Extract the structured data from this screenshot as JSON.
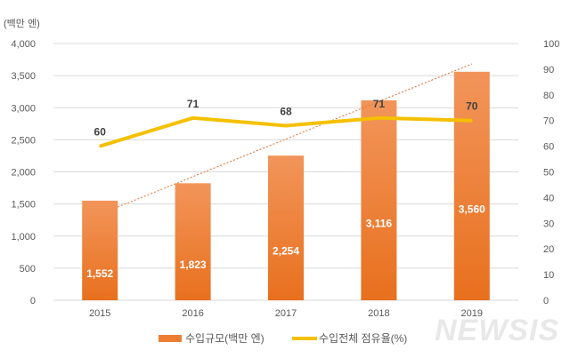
{
  "chart_data": {
    "type": "bar+line",
    "categories": [
      "2015",
      "2016",
      "2017",
      "2018",
      "2019"
    ],
    "series": [
      {
        "name": "수입규모(백만 엔)",
        "type": "bar",
        "axis": "left",
        "values": [
          1552,
          1823,
          2254,
          3116,
          3560
        ],
        "labels": [
          "1,552",
          "1,823",
          "2,254",
          "3,116",
          "3,560"
        ],
        "color": "#ED7D31"
      },
      {
        "name": "수입전체 점유율(%)",
        "type": "line",
        "axis": "right",
        "values": [
          60,
          71,
          68,
          71,
          70
        ],
        "color": "#F5C000"
      }
    ],
    "trendline": {
      "of": "수입규모(백만 엔)",
      "kind": "linear",
      "style": "dotted",
      "color": "#E07030"
    },
    "left_axis": {
      "unit_label": "(백만 엔)",
      "range": [
        0,
        4000
      ],
      "ticks": [
        "0",
        "500",
        "1,000",
        "1,500",
        "2,000",
        "2,500",
        "3,000",
        "3,500",
        "4,000"
      ]
    },
    "right_axis": {
      "range": [
        0,
        100
      ],
      "ticks": [
        "0",
        "10",
        "20",
        "30",
        "40",
        "50",
        "60",
        "70",
        "80",
        "90",
        "100"
      ]
    },
    "grid": true,
    "legend": "bottom"
  },
  "watermark": "NEWSIS"
}
